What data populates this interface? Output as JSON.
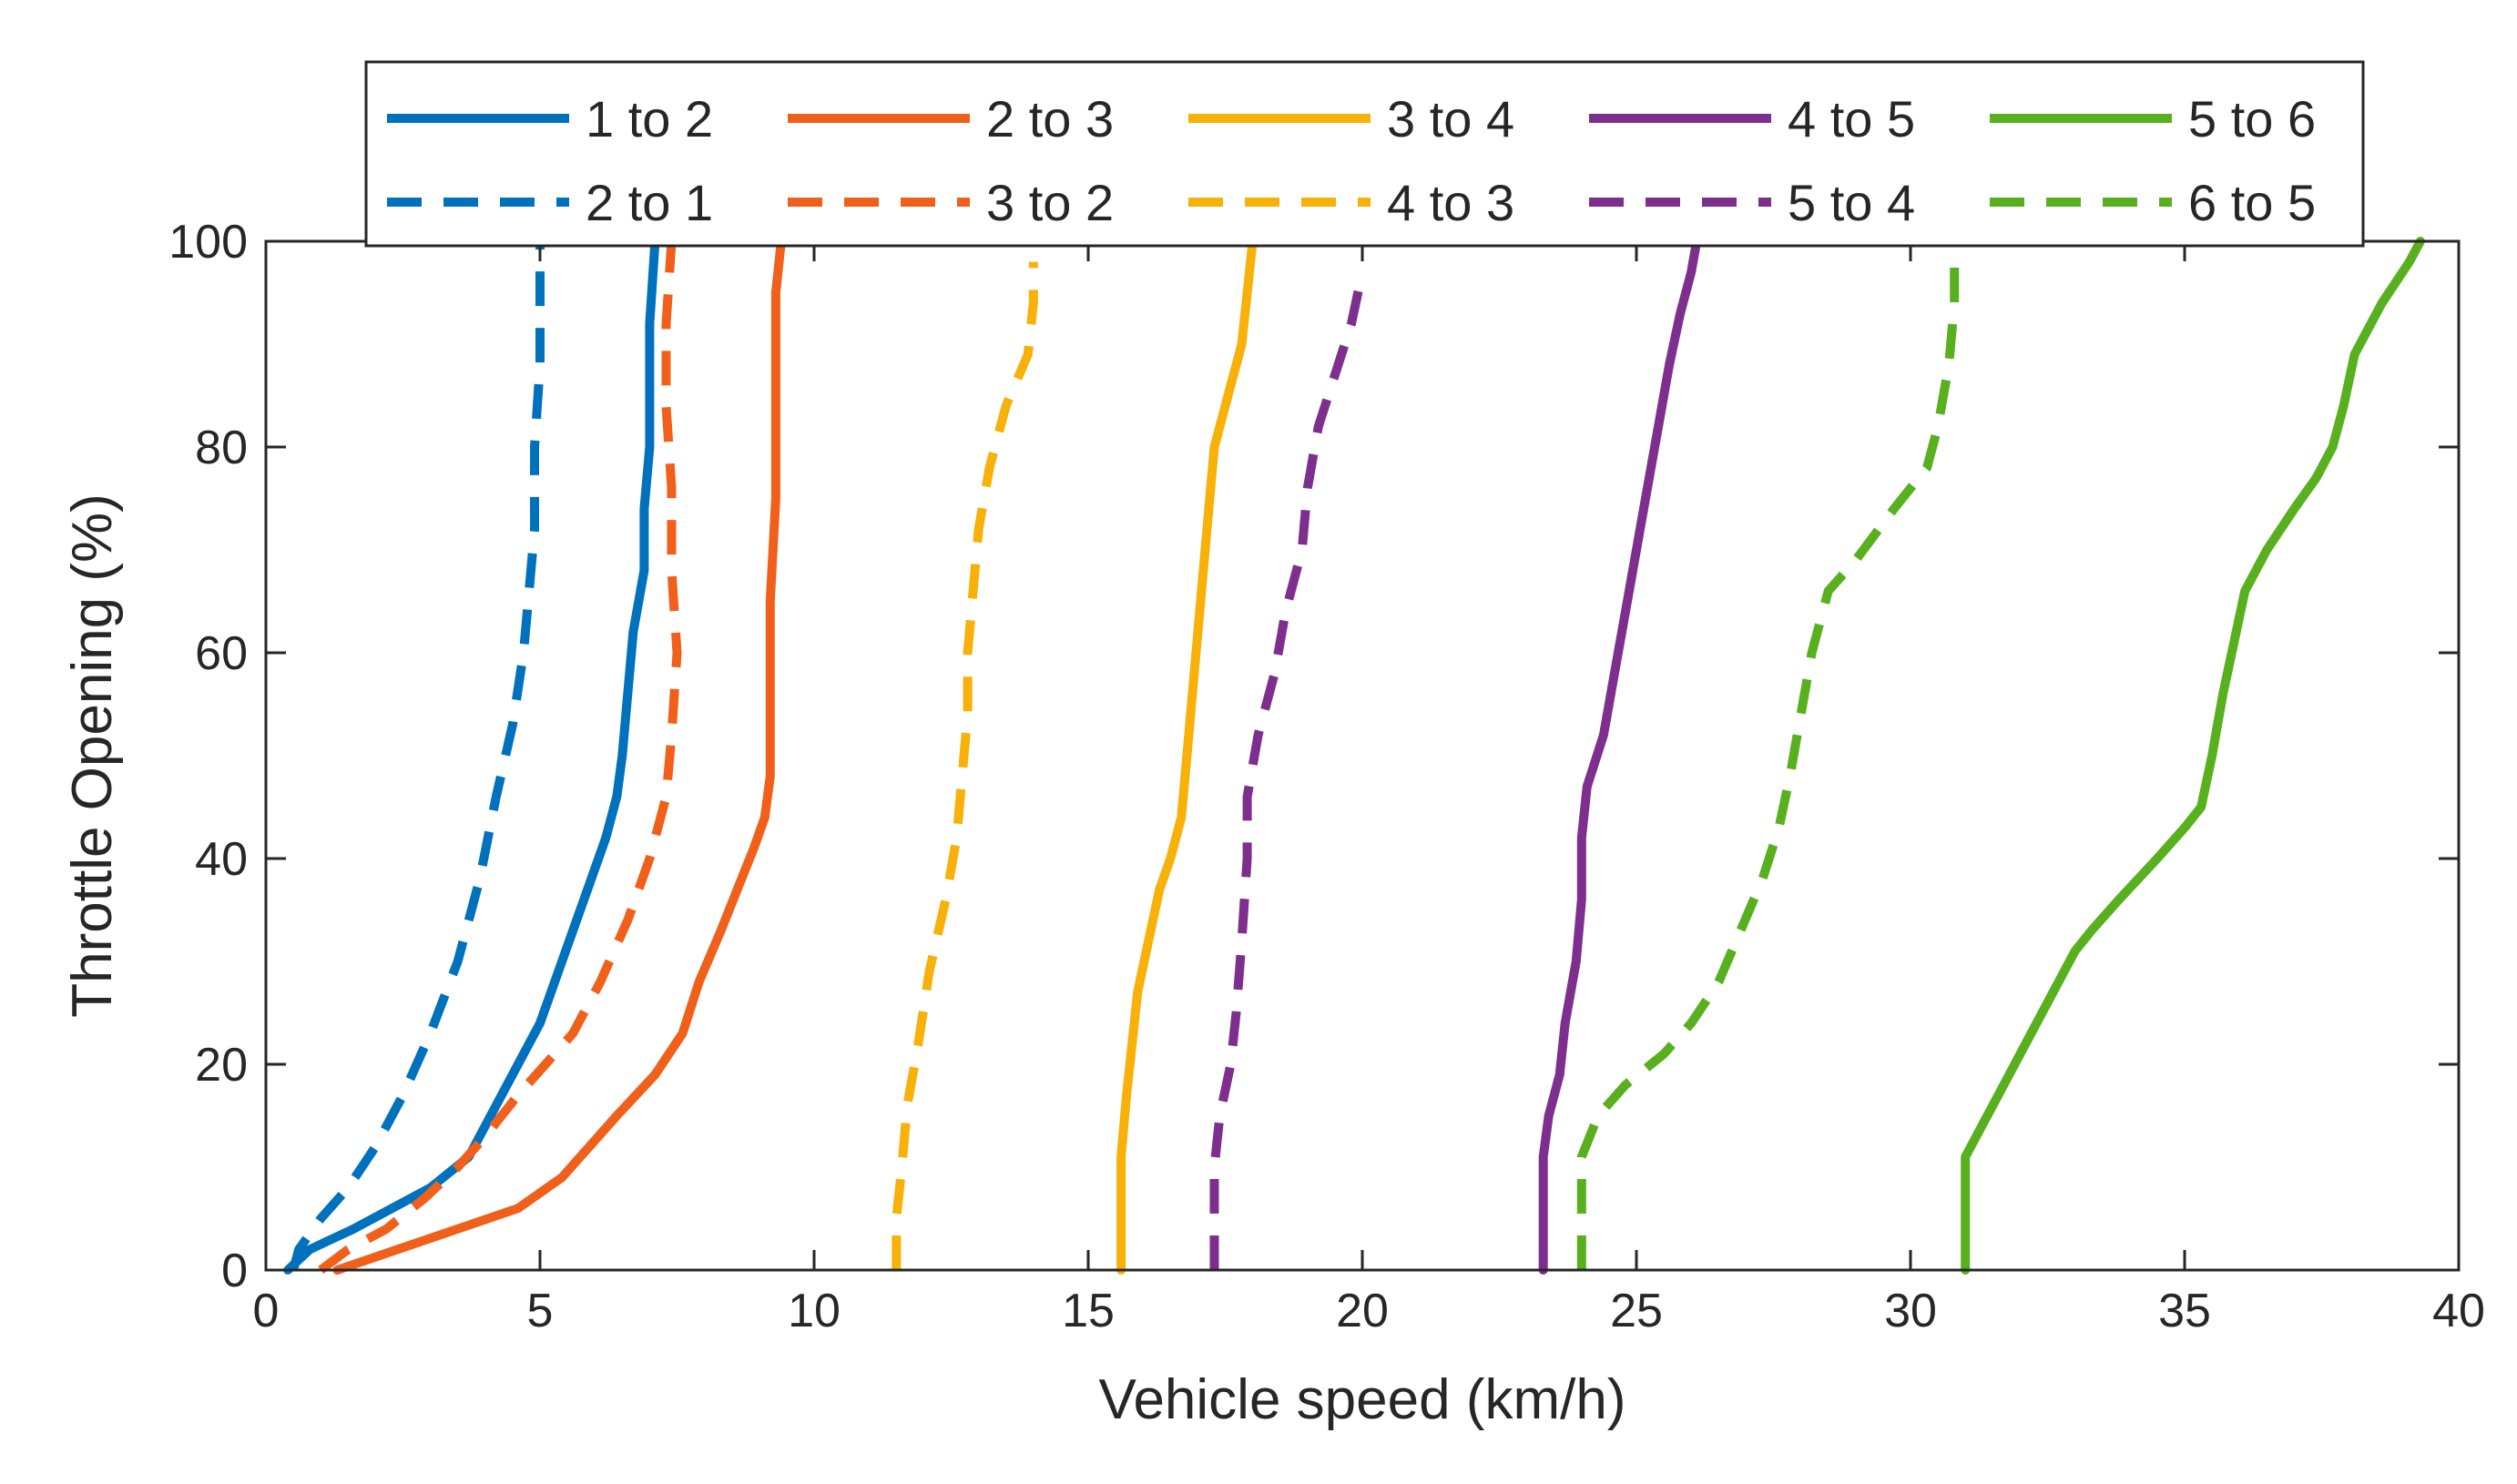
{
  "chart_data": {
    "type": "line",
    "title": "",
    "xlabel": "Vehicle speed (km/h)",
    "ylabel": "Throttle Opening (%)",
    "xlim": [
      0,
      40
    ],
    "ylim": [
      0,
      100
    ],
    "xticks": [
      0,
      5,
      10,
      15,
      20,
      25,
      30,
      35,
      40
    ],
    "yticks": [
      0,
      20,
      40,
      60,
      80,
      100
    ],
    "grid": false,
    "legend_position": "top-outside",
    "series": [
      {
        "name": "1 to 2",
        "color": "#0072BD",
        "style": "solid",
        "points": [
          [
            0.4,
            0
          ],
          [
            0.8,
            2
          ],
          [
            1.6,
            4
          ],
          [
            2.3,
            6
          ],
          [
            3.0,
            8
          ],
          [
            3.7,
            11
          ],
          [
            4.2,
            16
          ],
          [
            4.6,
            20
          ],
          [
            5.0,
            24
          ],
          [
            5.4,
            30
          ],
          [
            5.8,
            36
          ],
          [
            6.2,
            42
          ],
          [
            6.4,
            46
          ],
          [
            6.5,
            50
          ],
          [
            6.6,
            56
          ],
          [
            6.7,
            62
          ],
          [
            6.9,
            68
          ],
          [
            6.9,
            74
          ],
          [
            7.0,
            80
          ],
          [
            7.0,
            86
          ],
          [
            7.0,
            92
          ],
          [
            7.1,
            100
          ]
        ]
      },
      {
        "name": "2 to 3",
        "color": "#F0601A",
        "style": "solid",
        "points": [
          [
            1.3,
            0
          ],
          [
            2.4,
            2
          ],
          [
            3.5,
            4
          ],
          [
            4.6,
            6
          ],
          [
            5.4,
            9
          ],
          [
            5.9,
            12
          ],
          [
            6.4,
            15
          ],
          [
            7.1,
            19
          ],
          [
            7.6,
            23
          ],
          [
            7.9,
            28
          ],
          [
            8.3,
            33
          ],
          [
            8.6,
            37
          ],
          [
            8.9,
            41
          ],
          [
            9.1,
            44
          ],
          [
            9.2,
            48
          ],
          [
            9.2,
            55
          ],
          [
            9.2,
            65
          ],
          [
            9.3,
            75
          ],
          [
            9.3,
            85
          ],
          [
            9.3,
            95
          ],
          [
            9.4,
            100
          ]
        ]
      },
      {
        "name": "3 to 4",
        "color": "#F7B108",
        "style": "solid",
        "points": [
          [
            15.6,
            0
          ],
          [
            15.6,
            5
          ],
          [
            15.6,
            11
          ],
          [
            15.7,
            17
          ],
          [
            15.8,
            22
          ],
          [
            15.9,
            27
          ],
          [
            16.1,
            32
          ],
          [
            16.3,
            37
          ],
          [
            16.5,
            40
          ],
          [
            16.7,
            44
          ],
          [
            16.8,
            50
          ],
          [
            16.9,
            56
          ],
          [
            17.0,
            62
          ],
          [
            17.1,
            68
          ],
          [
            17.2,
            74
          ],
          [
            17.3,
            80
          ],
          [
            17.6,
            86
          ],
          [
            17.8,
            90
          ],
          [
            17.9,
            95
          ],
          [
            18.0,
            100
          ]
        ]
      },
      {
        "name": "4 to 5",
        "color": "#7E2F8E",
        "style": "solid",
        "points": [
          [
            23.3,
            0
          ],
          [
            23.3,
            5
          ],
          [
            23.3,
            11
          ],
          [
            23.4,
            15
          ],
          [
            23.6,
            19
          ],
          [
            23.7,
            24
          ],
          [
            23.9,
            30
          ],
          [
            24.0,
            36
          ],
          [
            24.0,
            42
          ],
          [
            24.1,
            47
          ],
          [
            24.4,
            52
          ],
          [
            24.6,
            58
          ],
          [
            24.8,
            64
          ],
          [
            25.0,
            70
          ],
          [
            25.2,
            76
          ],
          [
            25.4,
            82
          ],
          [
            25.6,
            88
          ],
          [
            25.8,
            93
          ],
          [
            26.0,
            97
          ],
          [
            26.1,
            100
          ]
        ]
      },
      {
        "name": "5 to 6",
        "color": "#58B01F",
        "style": "solid",
        "points": [
          [
            31.0,
            0
          ],
          [
            31.0,
            5
          ],
          [
            31.0,
            11
          ],
          [
            31.4,
            15
          ],
          [
            31.8,
            19
          ],
          [
            32.2,
            23
          ],
          [
            32.6,
            27
          ],
          [
            33.0,
            31
          ],
          [
            33.3,
            33
          ],
          [
            33.8,
            36
          ],
          [
            34.5,
            40
          ],
          [
            35.0,
            43
          ],
          [
            35.3,
            45
          ],
          [
            35.5,
            50
          ],
          [
            35.7,
            56
          ],
          [
            35.9,
            61
          ],
          [
            36.1,
            66
          ],
          [
            36.5,
            70
          ],
          [
            37.0,
            74
          ],
          [
            37.4,
            77
          ],
          [
            37.7,
            80
          ],
          [
            37.9,
            84
          ],
          [
            38.1,
            89
          ],
          [
            38.6,
            94
          ],
          [
            39.1,
            98
          ],
          [
            39.3,
            100
          ]
        ]
      },
      {
        "name": "2 to 1",
        "color": "#0072BD",
        "style": "dashed",
        "points": [
          [
            0.5,
            0
          ],
          [
            0.6,
            2
          ],
          [
            1.0,
            5
          ],
          [
            1.5,
            8
          ],
          [
            2.0,
            12
          ],
          [
            2.5,
            17
          ],
          [
            3.0,
            23
          ],
          [
            3.5,
            30
          ],
          [
            3.9,
            38
          ],
          [
            4.2,
            46
          ],
          [
            4.5,
            53
          ],
          [
            4.7,
            60
          ],
          [
            4.8,
            66
          ],
          [
            4.9,
            72
          ],
          [
            4.9,
            80
          ],
          [
            5.0,
            88
          ],
          [
            5.0,
            95
          ],
          [
            5.0,
            100
          ]
        ]
      },
      {
        "name": "3 to 2",
        "color": "#F0601A",
        "style": "dashed",
        "points": [
          [
            1.0,
            0
          ],
          [
            1.5,
            2
          ],
          [
            2.2,
            4
          ],
          [
            2.9,
            7
          ],
          [
            3.5,
            10
          ],
          [
            4.0,
            13
          ],
          [
            4.6,
            17
          ],
          [
            5.1,
            20
          ],
          [
            5.6,
            23
          ],
          [
            6.1,
            28
          ],
          [
            6.6,
            34
          ],
          [
            7.0,
            40
          ],
          [
            7.3,
            46
          ],
          [
            7.4,
            52
          ],
          [
            7.5,
            60
          ],
          [
            7.4,
            68
          ],
          [
            7.4,
            76
          ],
          [
            7.3,
            84
          ],
          [
            7.3,
            92
          ],
          [
            7.4,
            100
          ]
        ]
      },
      {
        "name": "4 to 3",
        "color": "#F7B108",
        "style": "dashed",
        "points": [
          [
            11.5,
            0
          ],
          [
            11.5,
            5
          ],
          [
            11.6,
            10
          ],
          [
            11.7,
            16
          ],
          [
            11.9,
            22
          ],
          [
            12.1,
            29
          ],
          [
            12.4,
            36
          ],
          [
            12.6,
            42
          ],
          [
            12.7,
            48
          ],
          [
            12.8,
            54
          ],
          [
            12.8,
            60
          ],
          [
            12.9,
            66
          ],
          [
            13.0,
            72
          ],
          [
            13.2,
            78
          ],
          [
            13.5,
            84
          ],
          [
            13.9,
            89
          ],
          [
            14.0,
            94
          ],
          [
            14.0,
            98
          ]
        ]
      },
      {
        "name": "5 to 4",
        "color": "#7E2F8E",
        "style": "dashed",
        "points": [
          [
            17.3,
            0
          ],
          [
            17.3,
            5
          ],
          [
            17.3,
            10
          ],
          [
            17.4,
            15
          ],
          [
            17.6,
            20
          ],
          [
            17.7,
            25
          ],
          [
            17.8,
            32
          ],
          [
            17.9,
            40
          ],
          [
            17.9,
            46
          ],
          [
            18.1,
            52
          ],
          [
            18.4,
            58
          ],
          [
            18.6,
            64
          ],
          [
            18.9,
            70
          ],
          [
            19.0,
            76
          ],
          [
            19.2,
            82
          ],
          [
            19.5,
            87
          ],
          [
            19.8,
            92
          ],
          [
            20.0,
            97
          ]
        ]
      },
      {
        "name": "6 to 5",
        "color": "#58B01F",
        "style": "dashed",
        "points": [
          [
            24.0,
            0
          ],
          [
            24.0,
            5
          ],
          [
            24.0,
            11
          ],
          [
            24.3,
            15
          ],
          [
            24.8,
            18
          ],
          [
            25.5,
            21
          ],
          [
            26.0,
            24
          ],
          [
            26.5,
            28
          ],
          [
            26.9,
            33
          ],
          [
            27.3,
            38
          ],
          [
            27.6,
            43
          ],
          [
            27.8,
            48
          ],
          [
            28.0,
            54
          ],
          [
            28.2,
            60
          ],
          [
            28.5,
            66
          ],
          [
            29.0,
            69
          ],
          [
            29.7,
            74
          ],
          [
            30.3,
            78
          ],
          [
            30.5,
            82
          ],
          [
            30.7,
            88
          ],
          [
            30.8,
            94
          ],
          [
            30.8,
            98
          ]
        ]
      }
    ],
    "legend": {
      "rows": [
        [
          "1 to 2",
          "2 to 3",
          "3 to 4",
          "4 to 5",
          "5 to 6"
        ],
        [
          "2 to 1",
          "3 to 2",
          "4 to 3",
          "5 to 4",
          "6 to 5"
        ]
      ]
    }
  }
}
